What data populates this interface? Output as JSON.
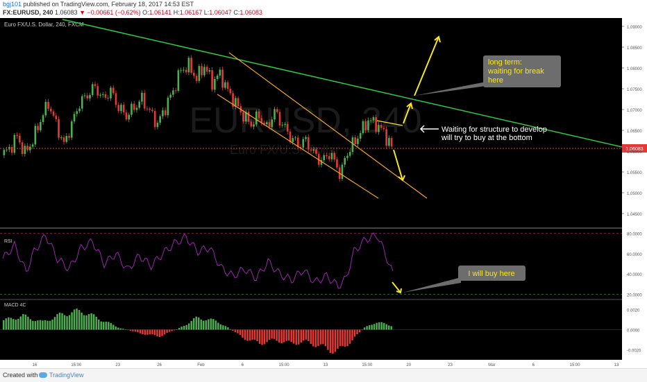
{
  "header": {
    "user": "bgj101",
    "published": "published on TradingView.com, February 18, 2017 14:53 EST",
    "symbol": "FX:EURUSD, 240",
    "last": "1.06083",
    "change": "−0.00661 (−0.62%)",
    "o_label": "O:",
    "o": "1.06141",
    "h_label": "H:",
    "h": "1.06167",
    "l_label": "L:",
    "l": "1.06047",
    "c_label": "C:",
    "c": "1.06083"
  },
  "chart_data": {
    "type": "candlestick",
    "pair_label": "Euro FX/U.S. Dollar, 240, FXCM",
    "watermark_big": "EURUSD, 240",
    "watermark_small": "Euro FX/U.S. Dollar",
    "last_price_badge": "1.06083",
    "last_price": 1.06083,
    "price_axis": {
      "ticks": [
        "1.09000",
        "1.08500",
        "1.08000",
        "1.07500",
        "1.07000",
        "1.06500",
        "1.06000",
        "1.05500",
        "1.05000",
        "1.04500"
      ],
      "values": [
        1.09,
        1.085,
        1.08,
        1.075,
        1.07,
        1.065,
        1.06,
        1.055,
        1.05,
        1.045
      ],
      "ylim": [
        1.042,
        1.092
      ]
    },
    "time_axis": [
      "16",
      "15:00",
      "23",
      "26",
      "Feb",
      "6",
      "15:00",
      "13",
      "15:00",
      "20",
      "23",
      "Mar",
      "6",
      "15:00",
      "13"
    ],
    "rsi": {
      "label": "RSI",
      "ticks": [
        "80.0000",
        "60.0000",
        "40.0000",
        "20.0000"
      ],
      "values": [
        80,
        60,
        40,
        20
      ],
      "ylim": [
        15,
        85
      ]
    },
    "macd": {
      "label": "MACD 4C",
      "ticks": [
        "0.0020",
        "0.0000",
        "-0.0020"
      ],
      "values": [
        0.002,
        0,
        -0.002
      ],
      "ylim": [
        -0.003,
        0.003
      ]
    },
    "close_path": [
      {
        "t": 0,
        "p": 1.059
      },
      {
        "t": 0.02,
        "p": 1.0605
      },
      {
        "t": 0.04,
        "p": 1.0635
      },
      {
        "t": 0.06,
        "p": 1.0595
      },
      {
        "t": 0.08,
        "p": 1.0625
      },
      {
        "t": 0.1,
        "p": 1.0675
      },
      {
        "t": 0.12,
        "p": 1.0715
      },
      {
        "t": 0.14,
        "p": 1.0665
      },
      {
        "t": 0.16,
        "p": 1.0615
      },
      {
        "t": 0.18,
        "p": 1.0665
      },
      {
        "t": 0.2,
        "p": 1.0715
      },
      {
        "t": 0.22,
        "p": 1.0735
      },
      {
        "t": 0.24,
        "p": 1.0755
      },
      {
        "t": 0.26,
        "p": 1.0725
      },
      {
        "t": 0.28,
        "p": 1.0745
      },
      {
        "t": 0.3,
        "p": 1.0705
      },
      {
        "t": 0.32,
        "p": 1.0685
      },
      {
        "t": 0.34,
        "p": 1.0705
      },
      {
        "t": 0.36,
        "p": 1.0725
      },
      {
        "t": 0.38,
        "p": 1.0695
      },
      {
        "t": 0.4,
        "p": 1.0665
      },
      {
        "t": 0.42,
        "p": 1.0705
      },
      {
        "t": 0.44,
        "p": 1.0745
      },
      {
        "t": 0.46,
        "p": 1.0795
      },
      {
        "t": 0.48,
        "p": 1.0805
      },
      {
        "t": 0.5,
        "p": 1.0775
      },
      {
        "t": 0.52,
        "p": 1.0805
      },
      {
        "t": 0.54,
        "p": 1.0765
      },
      {
        "t": 0.56,
        "p": 1.0785
      },
      {
        "t": 0.58,
        "p": 1.0745
      },
      {
        "t": 0.6,
        "p": 1.0715
      },
      {
        "t": 0.62,
        "p": 1.0685
      },
      {
        "t": 0.64,
        "p": 1.0665
      },
      {
        "t": 0.66,
        "p": 1.0685
      },
      {
        "t": 0.68,
        "p": 1.0655
      },
      {
        "t": 0.7,
        "p": 1.0695
      },
      {
        "t": 0.72,
        "p": 1.0665
      },
      {
        "t": 0.74,
        "p": 1.0635
      },
      {
        "t": 0.76,
        "p": 1.0615
      },
      {
        "t": 0.78,
        "p": 1.0625
      },
      {
        "t": 0.8,
        "p": 1.0595
      },
      {
        "t": 0.82,
        "p": 1.0575
      },
      {
        "t": 0.84,
        "p": 1.0595
      },
      {
        "t": 0.86,
        "p": 1.0565
      },
      {
        "t": 0.87,
        "p": 1.0535
      },
      {
        "t": 0.88,
        "p": 1.0585
      },
      {
        "t": 0.9,
        "p": 1.0615
      },
      {
        "t": 0.92,
        "p": 1.0645
      },
      {
        "t": 0.94,
        "p": 1.0675
      },
      {
        "t": 0.96,
        "p": 1.0665
      },
      {
        "t": 0.98,
        "p": 1.0645
      },
      {
        "t": 1.0,
        "p": 1.0608
      }
    ],
    "rsi_path": [
      {
        "t": 0,
        "v": 55
      },
      {
        "t": 0.03,
        "v": 68
      },
      {
        "t": 0.06,
        "v": 42
      },
      {
        "t": 0.08,
        "v": 62
      },
      {
        "t": 0.11,
        "v": 78
      },
      {
        "t": 0.14,
        "v": 55
      },
      {
        "t": 0.17,
        "v": 45
      },
      {
        "t": 0.2,
        "v": 65
      },
      {
        "t": 0.23,
        "v": 72
      },
      {
        "t": 0.26,
        "v": 50
      },
      {
        "t": 0.29,
        "v": 60
      },
      {
        "t": 0.32,
        "v": 44
      },
      {
        "t": 0.35,
        "v": 58
      },
      {
        "t": 0.38,
        "v": 48
      },
      {
        "t": 0.41,
        "v": 60
      },
      {
        "t": 0.44,
        "v": 70
      },
      {
        "t": 0.47,
        "v": 76
      },
      {
        "t": 0.5,
        "v": 62
      },
      {
        "t": 0.53,
        "v": 66
      },
      {
        "t": 0.56,
        "v": 46
      },
      {
        "t": 0.59,
        "v": 38
      },
      {
        "t": 0.62,
        "v": 45
      },
      {
        "t": 0.65,
        "v": 36
      },
      {
        "t": 0.68,
        "v": 52
      },
      {
        "t": 0.71,
        "v": 40
      },
      {
        "t": 0.74,
        "v": 34
      },
      {
        "t": 0.77,
        "v": 44
      },
      {
        "t": 0.8,
        "v": 32
      },
      {
        "t": 0.83,
        "v": 38
      },
      {
        "t": 0.86,
        "v": 28
      },
      {
        "t": 0.88,
        "v": 36
      },
      {
        "t": 0.9,
        "v": 62
      },
      {
        "t": 0.93,
        "v": 74
      },
      {
        "t": 0.96,
        "v": 78
      },
      {
        "t": 0.98,
        "v": 60
      },
      {
        "t": 1.0,
        "v": 40
      }
    ],
    "macd_path": [
      {
        "t": 0,
        "v": 0.0011
      },
      {
        "t": 0.05,
        "v": 0.0016
      },
      {
        "t": 0.1,
        "v": 0.0009
      },
      {
        "t": 0.15,
        "v": 0.0018
      },
      {
        "t": 0.2,
        "v": 0.0022
      },
      {
        "t": 0.25,
        "v": 0.0012
      },
      {
        "t": 0.3,
        "v": 0.0002
      },
      {
        "t": 0.35,
        "v": -0.0004
      },
      {
        "t": 0.4,
        "v": -0.0008
      },
      {
        "t": 0.45,
        "v": 0.0001
      },
      {
        "t": 0.5,
        "v": 0.0014
      },
      {
        "t": 0.55,
        "v": 0.001
      },
      {
        "t": 0.58,
        "v": 0.0002
      },
      {
        "t": 0.62,
        "v": -0.001
      },
      {
        "t": 0.66,
        "v": -0.0016
      },
      {
        "t": 0.7,
        "v": -0.0012
      },
      {
        "t": 0.74,
        "v": -0.0016
      },
      {
        "t": 0.78,
        "v": -0.0014
      },
      {
        "t": 0.82,
        "v": -0.002
      },
      {
        "t": 0.86,
        "v": -0.0026
      },
      {
        "t": 0.9,
        "v": -0.0012
      },
      {
        "t": 0.93,
        "v": 0.0002
      },
      {
        "t": 0.96,
        "v": 0.0009
      },
      {
        "t": 1.0,
        "v": 0.0005
      }
    ],
    "annotations": {
      "long_term": [
        "long term:",
        "waiting for break",
        "here"
      ],
      "structure": [
        "Waiting for structure to develop",
        "will try to buy at the bottom"
      ],
      "buy": "I will buy here"
    },
    "colors": {
      "up": "#4caf50",
      "down": "#e53935",
      "trendline": "#2ecc40",
      "channel": "#f5a623",
      "arrow": "#f8e71c",
      "rsi": "#9c27b0",
      "last_price": "#e53935",
      "callout_bg": "#6d6d6d"
    }
  },
  "footer": {
    "created_with": "Created with",
    "brand": "TradingView"
  }
}
